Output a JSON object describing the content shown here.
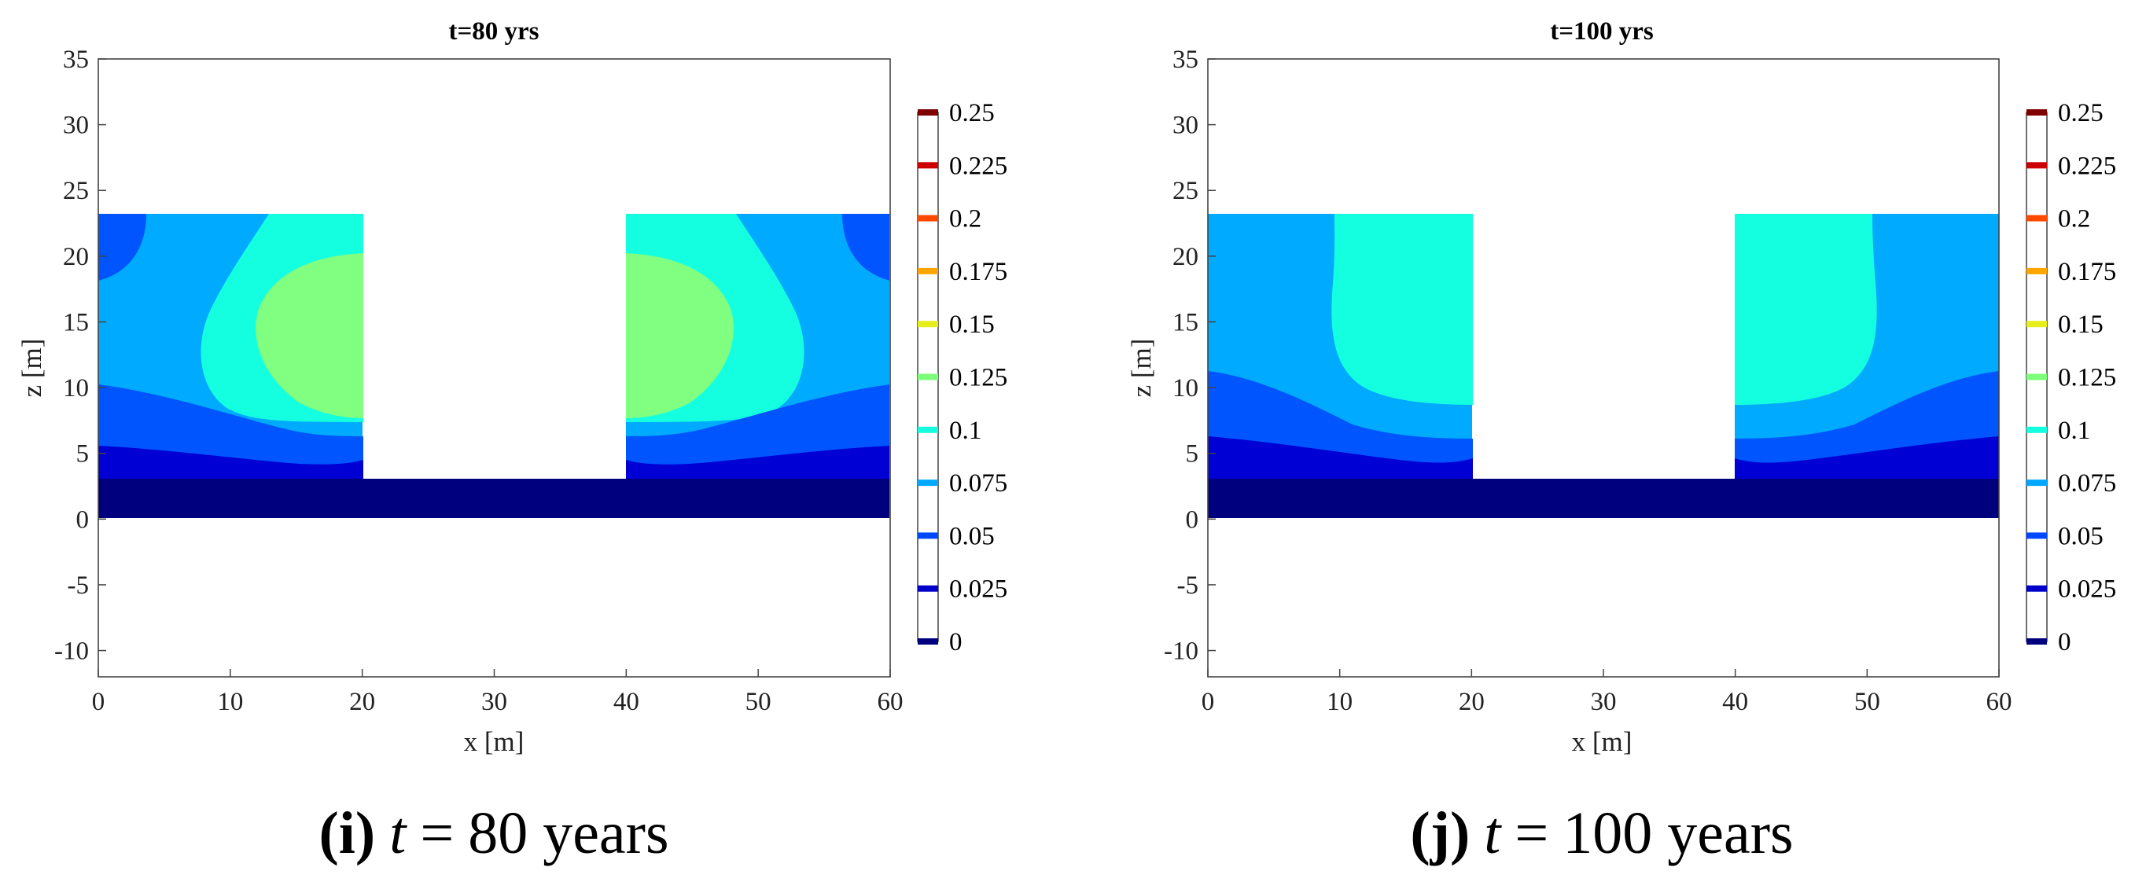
{
  "chart_data": [
    {
      "type": "contour",
      "panel_id": "i",
      "title": "t=80 yrs",
      "xlabel": "x [m]",
      "ylabel": "z [m]",
      "xlim": [
        0,
        60
      ],
      "ylim": [
        -12,
        35
      ],
      "xticks": [
        "0",
        "10",
        "20",
        "30",
        "40",
        "50",
        "60"
      ],
      "yticks": [
        "-10",
        "-5",
        "0",
        "5",
        "10",
        "15",
        "20",
        "25",
        "30",
        "35"
      ],
      "caption": {
        "label": "(i)",
        "var": "t",
        "eq": "=",
        "value": "80 years"
      },
      "domain": {
        "left_block": {
          "x": [
            0,
            20
          ],
          "z": [
            0,
            23
          ]
        },
        "right_block": {
          "x": [
            40,
            60
          ],
          "z": [
            0,
            23
          ]
        },
        "base_layer": {
          "x": [
            0,
            60
          ],
          "z": [
            0,
            3
          ]
        }
      },
      "contour_bands": [
        {
          "level": 0.025,
          "z_at_outer_edge": 2.4,
          "z_at_inner_edge": 1.5
        },
        {
          "level": 0.05,
          "z_at_outer_edge": 5.2,
          "z_at_inner_edge": 4.0
        },
        {
          "level": 0.075,
          "z_at_outer_edge": 10.0,
          "z_at_inner_edge": 7.5
        },
        {
          "level": 0.1,
          "z_at_outer_edge": 18.0,
          "z_at_inner_edge": 23.0
        },
        {
          "level": 0.125,
          "region": "core x 12-20, z 7.5-18.5"
        }
      ]
    },
    {
      "type": "contour",
      "panel_id": "j",
      "title": "t=100 yrs",
      "xlabel": "x [m]",
      "ylabel": "z [m]",
      "xlim": [
        0,
        60
      ],
      "ylim": [
        -12,
        35
      ],
      "xticks": [
        "0",
        "10",
        "20",
        "30",
        "40",
        "50",
        "60"
      ],
      "yticks": [
        "-10",
        "-5",
        "0",
        "5",
        "10",
        "15",
        "20",
        "25",
        "30",
        "35"
      ],
      "caption": {
        "label": "(j)",
        "var": "t",
        "eq": "=",
        "value": "100 years"
      },
      "domain": {
        "left_block": {
          "x": [
            0,
            20
          ],
          "z": [
            0,
            23
          ]
        },
        "right_block": {
          "x": [
            40,
            60
          ],
          "z": [
            0,
            23
          ]
        },
        "base_layer": {
          "x": [
            0,
            60
          ],
          "z": [
            0,
            3
          ]
        }
      },
      "contour_bands": [
        {
          "level": 0.025,
          "z_at_outer_edge": 2.8,
          "z_at_inner_edge": 2.0
        },
        {
          "level": 0.05,
          "z_at_outer_edge": 6.0,
          "z_at_inner_edge": 4.0
        },
        {
          "level": 0.075,
          "z_at_outer_edge": 11.0,
          "z_at_inner_edge": 6.0
        },
        {
          "level": 0.1,
          "region": "core x 10-20, z 8.5-23"
        }
      ]
    }
  ],
  "colorbar": {
    "ticks": [
      "0.25",
      "0.225",
      "0.2",
      "0.175",
      "0.15",
      "0.125",
      "0.1",
      "0.075",
      "0.05",
      "0.025",
      "0"
    ],
    "colors": [
      "#7f0000",
      "#cc0000",
      "#ff4a00",
      "#ffa500",
      "#e6ee1c",
      "#7dff7a",
      "#14ffe0",
      "#00a8ff",
      "#0048ff",
      "#0000cc",
      "#00007f"
    ]
  },
  "fill_colors": {
    "c0": "#00007f",
    "c025": "#0000d4",
    "c05": "#0055ff",
    "c075": "#00aaff",
    "c1": "#14ffe0",
    "c125": "#80ff80"
  }
}
